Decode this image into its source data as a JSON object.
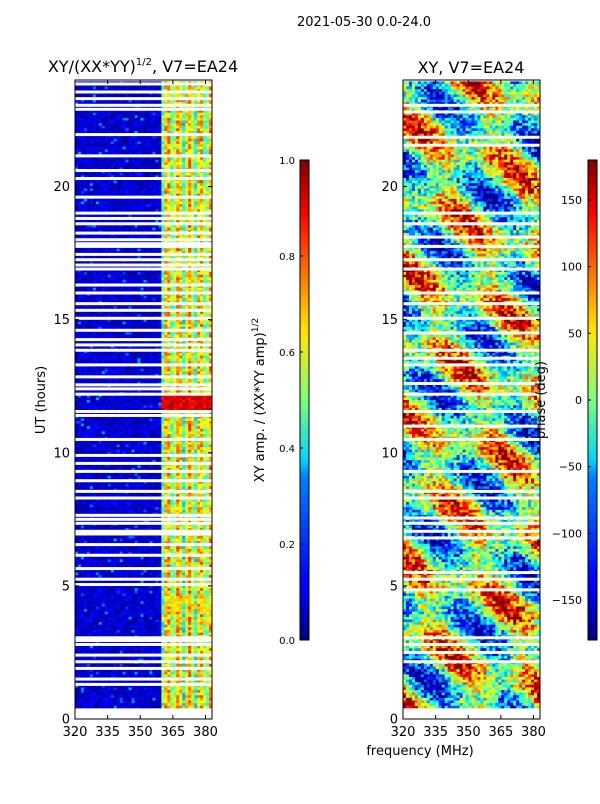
{
  "suptitle": "2021-05-30 0.0-24.0",
  "shared_xlabel": "frequency (MHz)",
  "chart_data": [
    {
      "type": "heatmap",
      "title_main": "XY/(XX*YY)",
      "title_exp": "1/2",
      "title_tail": ", V7=EA24",
      "ylabel": "UT (hours)",
      "xlim": [
        320,
        383
      ],
      "ylim": [
        0,
        24
      ],
      "xticks": [
        320,
        335,
        350,
        365,
        380
      ],
      "yticks": [
        0,
        5,
        10,
        15,
        20
      ],
      "colorbar": {
        "label_main": "XY amp. / (XX*YY amp)",
        "label_exp": "1/2",
        "range": [
          0.0,
          1.0
        ],
        "ticks": [
          "0.0",
          "0.2",
          "0.4",
          "0.6",
          "0.8",
          "1.0"
        ],
        "tick_values": [
          0.0,
          0.2,
          0.4,
          0.6,
          0.8,
          1.0
        ],
        "colormap": "jet"
      },
      "gap_hours": [
        1.3,
        1.5,
        1.9,
        2.15,
        2.4,
        2.8,
        2.95,
        3.05,
        5.05,
        5.25,
        5.65,
        6.15,
        6.55,
        6.95,
        7.05,
        7.35,
        7.5,
        7.65,
        8.3,
        8.55,
        8.95,
        9.3,
        9.6,
        9.9,
        10.5,
        11.4,
        11.55,
        12.2,
        12.4,
        12.55,
        12.85,
        13.3,
        13.85,
        14.05,
        14.25,
        14.6,
        15.05,
        15.35,
        15.6,
        16.0,
        16.3,
        16.9,
        17.05,
        17.25,
        17.45,
        17.75,
        17.85,
        18.0,
        18.25,
        18.6,
        18.8,
        19.0,
        19.6,
        20.3,
        20.6,
        21.15,
        21.95,
        22.9,
        23.05,
        23.3,
        23.55,
        23.85
      ]
    },
    {
      "type": "heatmap",
      "title_main": "XY, V7=EA24",
      "xlim": [
        320,
        383
      ],
      "ylim": [
        0,
        24
      ],
      "xticks": [
        320,
        335,
        350,
        365,
        380
      ],
      "yticks": [
        0,
        5,
        10,
        15,
        20
      ],
      "colorbar": {
        "label_main": "phase (deg)",
        "range": [
          -180,
          180
        ],
        "ticks": [
          "150",
          "100",
          "50",
          "0",
          "−50",
          "−100",
          "−150"
        ],
        "tick_values": [
          150,
          100,
          50,
          0,
          -50,
          -100,
          -150
        ],
        "colormap": "jet"
      },
      "gap_hours": [
        2.15,
        2.5,
        2.8,
        3.05,
        4.85,
        5.25,
        5.5,
        6.8,
        7.05,
        7.35,
        7.55,
        8.3,
        8.55,
        9.3,
        10.5,
        11.0,
        11.55,
        12.2,
        12.6,
        13.3,
        13.55,
        13.85,
        14.5,
        15.05,
        15.6,
        16.0,
        16.9,
        17.25,
        17.75,
        18.1,
        18.6,
        19.0,
        21.55,
        21.85,
        22.8,
        23.05
      ]
    }
  ]
}
